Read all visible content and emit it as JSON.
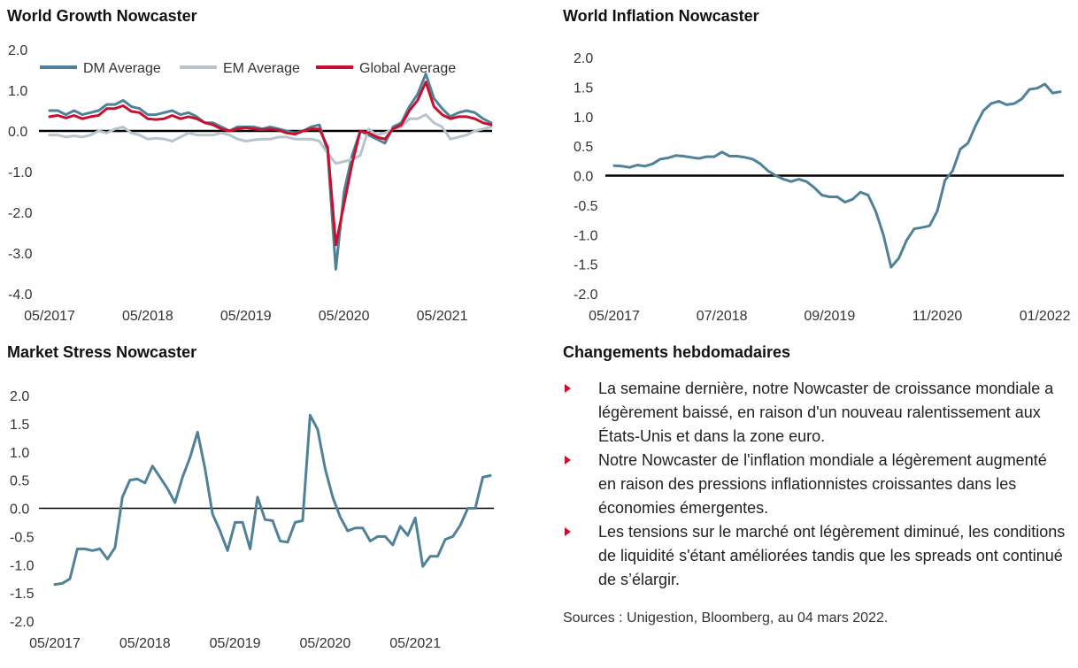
{
  "panels": {
    "growth_title": "World Growth Nowcaster",
    "inflation_title": "World Inflation Nowcaster",
    "stress_title": "Market Stress Nowcaster",
    "changes_title": "Changements hebdomadaires"
  },
  "changes": {
    "bullets": [
      "La semaine dernière, notre Nowcaster de croissance mondiale a légèrement baissé, en raison d'un nouveau ralentissement aux États-Unis et dans la zone euro.",
      "Notre Nowcaster de l'inflation mondiale a légèrement augmenté en raison des pressions inflationnistes croissantes dans les économies émergentes.",
      "Les tensions sur le marché ont légèrement diminué, les conditions de liquidité s'étant améliorées tandis que les spreads ont continué de s’élargir."
    ],
    "sources": "Sources : Unigestion, Bloomberg, au 04 mars 2022."
  },
  "colors": {
    "dm": "#4f8199",
    "em": "#b8c4cb",
    "global": "#c8102e",
    "line": "#4f8199",
    "zero": "#000000",
    "bullet": "#c8102e"
  },
  "chart_data": [
    {
      "type": "line",
      "title": "World Growth Nowcaster",
      "ylim": [
        -4.0,
        2.0
      ],
      "y_ticks": [
        "2.0",
        "1.0",
        "0.0",
        "-1.0",
        "-2.0",
        "-3.0",
        "-4.0"
      ],
      "x_ticks": [
        "05/2017",
        "05/2018",
        "05/2019",
        "05/2020",
        "05/2021"
      ],
      "x_tick_index": [
        0,
        12,
        24,
        36,
        48
      ],
      "grid": false,
      "legend_placement": "top",
      "series": [
        {
          "name": "DM Average",
          "values": [
            0.5,
            0.5,
            0.4,
            0.5,
            0.4,
            0.45,
            0.5,
            0.65,
            0.65,
            0.75,
            0.6,
            0.55,
            0.4,
            0.4,
            0.45,
            0.5,
            0.4,
            0.45,
            0.35,
            0.2,
            0.2,
            0.1,
            0.0,
            0.1,
            0.1,
            0.1,
            0.05,
            0.1,
            0.05,
            0.0,
            -0.05,
            0.0,
            0.1,
            0.15,
            -0.5,
            -3.4,
            -1.5,
            -0.6,
            0.0,
            -0.1,
            -0.2,
            -0.3,
            0.1,
            0.2,
            0.6,
            0.9,
            1.4,
            0.8,
            0.55,
            0.35,
            0.45,
            0.5,
            0.45,
            0.3,
            0.2
          ]
        },
        {
          "name": "EM Average",
          "values": [
            -0.1,
            -0.1,
            -0.15,
            -0.12,
            -0.15,
            -0.1,
            0.0,
            -0.05,
            0.05,
            0.1,
            -0.05,
            -0.1,
            -0.2,
            -0.18,
            -0.2,
            -0.25,
            -0.15,
            -0.05,
            -0.1,
            -0.1,
            -0.1,
            -0.05,
            -0.1,
            -0.2,
            -0.25,
            -0.22,
            -0.2,
            -0.2,
            -0.15,
            -0.15,
            -0.2,
            -0.2,
            -0.2,
            -0.25,
            -0.55,
            -0.8,
            -0.75,
            -0.7,
            -0.6,
            0.05,
            -0.1,
            -0.05,
            0.05,
            0.1,
            0.3,
            0.3,
            0.4,
            0.2,
            0.1,
            -0.2,
            -0.15,
            -0.1,
            0.0,
            0.05,
            0.1
          ]
        },
        {
          "name": "Global Average",
          "values": [
            0.35,
            0.38,
            0.32,
            0.38,
            0.3,
            0.35,
            0.38,
            0.55,
            0.55,
            0.62,
            0.48,
            0.45,
            0.3,
            0.28,
            0.3,
            0.38,
            0.3,
            0.35,
            0.3,
            0.2,
            0.15,
            0.05,
            0.0,
            0.05,
            0.08,
            0.05,
            0.03,
            0.05,
            0.02,
            -0.05,
            -0.08,
            0.0,
            0.05,
            0.05,
            -0.4,
            -2.8,
            -1.8,
            -0.8,
            0.0,
            -0.05,
            -0.15,
            -0.2,
            0.05,
            0.15,
            0.5,
            0.75,
            1.2,
            0.6,
            0.4,
            0.3,
            0.35,
            0.35,
            0.3,
            0.2,
            0.15
          ]
        }
      ]
    },
    {
      "type": "line",
      "title": "World Inflation Nowcaster",
      "ylim": [
        -2.0,
        2.0
      ],
      "y_ticks": [
        "2.0",
        "1.5",
        "1.0",
        "0.5",
        "0.0",
        "-0.5",
        "-1.0",
        "-1.5",
        "-2.0"
      ],
      "x_ticks": [
        "05/2017",
        "07/2018",
        "09/2019",
        "11/2020",
        "01/2022"
      ],
      "x_tick_index": [
        0,
        14,
        28,
        42,
        56
      ],
      "grid": false,
      "series": [
        {
          "name": "",
          "values": [
            0.17,
            0.16,
            0.14,
            0.18,
            0.16,
            0.2,
            0.28,
            0.3,
            0.34,
            0.33,
            0.31,
            0.29,
            0.32,
            0.32,
            0.4,
            0.33,
            0.33,
            0.31,
            0.28,
            0.2,
            0.08,
            0.0,
            -0.06,
            -0.1,
            -0.06,
            -0.1,
            -0.2,
            -0.33,
            -0.36,
            -0.36,
            -0.45,
            -0.4,
            -0.28,
            -0.33,
            -0.6,
            -1.0,
            -1.55,
            -1.4,
            -1.1,
            -0.9,
            -0.88,
            -0.85,
            -0.6,
            -0.08,
            0.08,
            0.45,
            0.55,
            0.85,
            1.1,
            1.22,
            1.26,
            1.2,
            1.22,
            1.3,
            1.46,
            1.48,
            1.55,
            1.4,
            1.42
          ]
        }
      ]
    },
    {
      "type": "line",
      "title": "Market Stress Nowcaster",
      "ylim": [
        -2.0,
        2.0
      ],
      "y_ticks": [
        "2.0",
        "1.5",
        "1.0",
        "0.5",
        "0.0",
        "-0.5",
        "-1.0",
        "-1.5",
        "-2.0"
      ],
      "x_ticks": [
        "05/2017",
        "05/2018",
        "05/2019",
        "05/2020",
        "05/2021"
      ],
      "x_tick_index": [
        0,
        12,
        24,
        36,
        48
      ],
      "grid": false,
      "series": [
        {
          "name": "",
          "values": [
            -1.35,
            -1.33,
            -1.25,
            -0.72,
            -0.72,
            -0.75,
            -0.72,
            -0.9,
            -0.7,
            0.2,
            0.5,
            0.52,
            0.45,
            0.75,
            0.55,
            0.35,
            0.1,
            0.55,
            0.9,
            1.35,
            0.7,
            -0.1,
            -0.4,
            -0.75,
            -0.25,
            -0.25,
            -0.72,
            0.2,
            -0.2,
            -0.22,
            -0.58,
            -0.6,
            -0.25,
            -0.22,
            1.65,
            1.4,
            0.7,
            0.2,
            -0.15,
            -0.4,
            -0.35,
            -0.35,
            -0.58,
            -0.5,
            -0.5,
            -0.65,
            -0.32,
            -0.48,
            -0.17,
            -1.03,
            -0.85,
            -0.85,
            -0.55,
            -0.5,
            -0.3,
            0.0,
            0.0,
            0.55,
            0.58
          ]
        }
      ]
    }
  ]
}
